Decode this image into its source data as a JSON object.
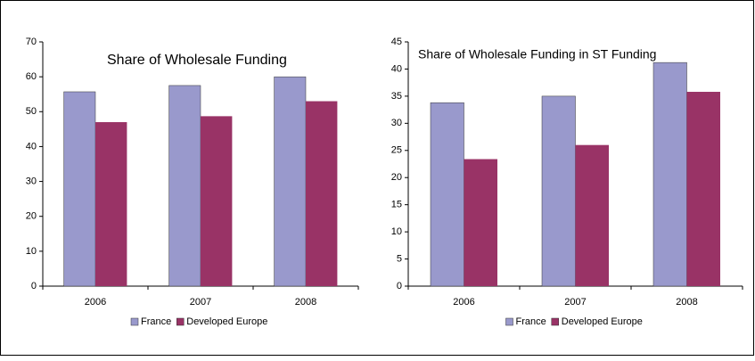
{
  "chart_data": [
    {
      "type": "bar",
      "title": "Share of Wholesale Funding",
      "categories": [
        "2006",
        "2007",
        "2008"
      ],
      "series": [
        {
          "name": "France",
          "color": "#9999cc",
          "values": [
            55.7,
            57.5,
            60
          ]
        },
        {
          "name": "Developed Europe",
          "color": "#993366",
          "values": [
            47,
            48.7,
            53
          ]
        }
      ],
      "ylim": [
        0,
        70
      ],
      "yticks": [
        0,
        10,
        20,
        30,
        40,
        50,
        60,
        70
      ],
      "grid": false,
      "legend": "bottom"
    },
    {
      "type": "bar",
      "title": "Share of Wholesale Funding in ST Funding",
      "categories": [
        "2006",
        "2007",
        "2008"
      ],
      "series": [
        {
          "name": "France",
          "color": "#9999cc",
          "values": [
            33.8,
            35,
            41.2
          ]
        },
        {
          "name": "Developed Europe",
          "color": "#993366",
          "values": [
            23.4,
            26,
            35.8
          ]
        }
      ],
      "ylim": [
        0,
        45
      ],
      "yticks": [
        0,
        5,
        10,
        15,
        20,
        25,
        30,
        35,
        40,
        45
      ],
      "grid": false,
      "legend": "bottom"
    }
  ]
}
